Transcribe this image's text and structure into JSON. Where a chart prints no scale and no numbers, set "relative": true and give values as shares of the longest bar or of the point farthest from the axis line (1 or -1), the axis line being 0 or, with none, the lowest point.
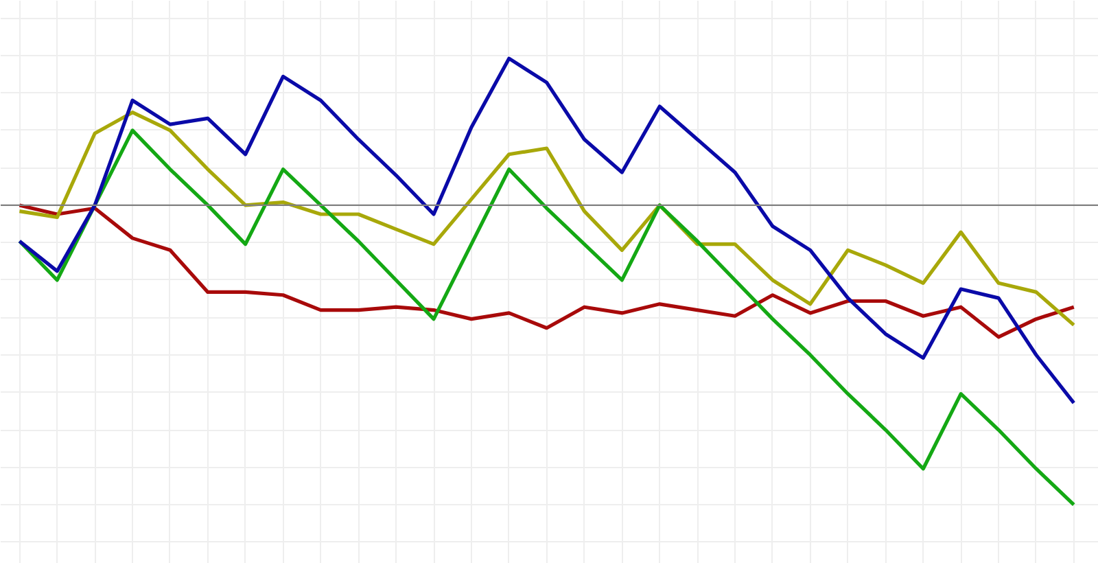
{
  "chart_data": {
    "type": "line",
    "relative": true,
    "grid": true,
    "line_style": "solid",
    "marker": "none",
    "categories": [
      null,
      null,
      null,
      null,
      null,
      null,
      null,
      null,
      null,
      null,
      null,
      null,
      null,
      null,
      null,
      null,
      null,
      null,
      null,
      null,
      null,
      null,
      null,
      null,
      null,
      null,
      null,
      null,
      null
    ],
    "series": [
      {
        "color": "#a80a0a",
        "values": [
          0,
          -0.03,
          -0.01,
          -0.11,
          -0.15,
          -0.29,
          -0.29,
          -0.3,
          -0.35,
          -0.35,
          -0.34,
          -0.35,
          -0.38,
          -0.36,
          -0.41,
          -0.34,
          -0.36,
          -0.33,
          -0.35,
          -0.37,
          -0.3,
          -0.36,
          -0.32,
          -0.32,
          -0.37,
          -0.34,
          -0.44,
          -0.38,
          -0.34
        ]
      },
      {
        "color": "#a8a80a",
        "values": [
          -0.02,
          -0.04,
          0.24,
          0.31,
          0.25,
          0.12,
          0.0,
          0.01,
          -0.03,
          -0.03,
          -0.08,
          -0.13,
          0.02,
          0.17,
          0.19,
          -0.02,
          -0.15,
          0.0,
          -0.13,
          -0.13,
          -0.25,
          -0.33,
          -0.15,
          -0.2,
          -0.26,
          -0.09,
          -0.26,
          -0.29,
          -0.4
        ]
      },
      {
        "color": "#14a814",
        "values": [
          -0.12,
          -0.25,
          0.0,
          0.25,
          0.12,
          0.0,
          -0.13,
          0.12,
          0.0,
          -0.12,
          -0.25,
          -0.38,
          -0.13,
          0.12,
          -0.01,
          -0.13,
          -0.25,
          0.0,
          -0.12,
          -0.25,
          -0.38,
          -0.5,
          -0.63,
          -0.75,
          -0.88,
          -0.63,
          -0.75,
          -0.88,
          -1
        ]
      },
      {
        "color": "#0a0aa8",
        "values": [
          -0.12,
          -0.22,
          0.0,
          0.35,
          0.27,
          0.29,
          0.17,
          0.43,
          0.35,
          0.22,
          0.1,
          -0.03,
          0.26,
          0.49,
          0.41,
          0.22,
          0.11,
          0.33,
          0.22,
          0.11,
          -0.07,
          -0.15,
          -0.31,
          -0.43,
          -0.51,
          -0.28,
          -0.31,
          -0.5,
          -0.66
        ]
      }
    ]
  }
}
